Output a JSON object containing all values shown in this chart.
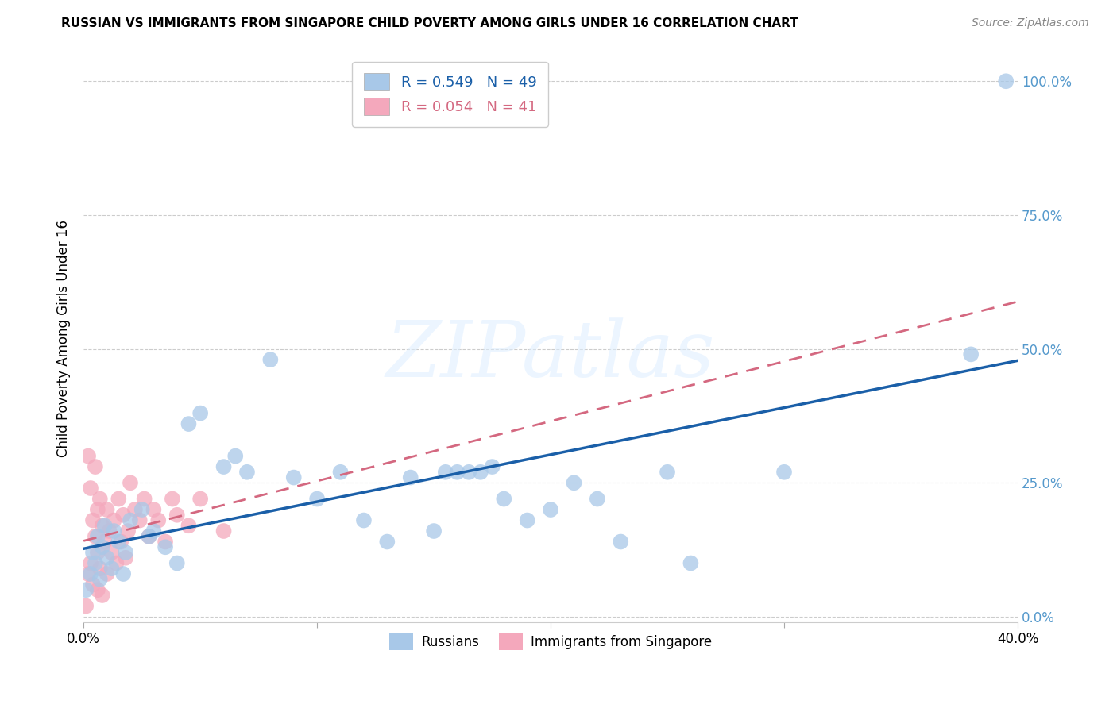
{
  "title": "RUSSIAN VS IMMIGRANTS FROM SINGAPORE CHILD POVERTY AMONG GIRLS UNDER 16 CORRELATION CHART",
  "source": "Source: ZipAtlas.com",
  "ylabel": "Child Poverty Among Girls Under 16",
  "xlim": [
    0.0,
    0.4
  ],
  "ylim": [
    -0.01,
    1.05
  ],
  "yticks": [
    0.0,
    0.25,
    0.5,
    0.75,
    1.0
  ],
  "ytick_labels": [
    "0.0%",
    "25.0%",
    "50.0%",
    "75.0%",
    "100.0%"
  ],
  "xticks": [
    0.0,
    0.1,
    0.2,
    0.3,
    0.4
  ],
  "xtick_labels": [
    "0.0%",
    "",
    "",
    "",
    "40.0%"
  ],
  "russians_R": 0.549,
  "russians_N": 49,
  "singapore_R": 0.054,
  "singapore_N": 41,
  "blue_color": "#a8c8e8",
  "pink_color": "#f4a8bc",
  "blue_line_color": "#1a5fa8",
  "pink_line_color": "#d46880",
  "legend_labels": [
    "Russians",
    "Immigrants from Singapore"
  ],
  "russians_x": [
    0.001,
    0.003,
    0.004,
    0.005,
    0.006,
    0.007,
    0.008,
    0.009,
    0.01,
    0.012,
    0.013,
    0.015,
    0.017,
    0.018,
    0.02,
    0.025,
    0.028,
    0.03,
    0.035,
    0.04,
    0.045,
    0.05,
    0.06,
    0.065,
    0.07,
    0.08,
    0.09,
    0.1,
    0.11,
    0.12,
    0.13,
    0.14,
    0.15,
    0.155,
    0.16,
    0.165,
    0.17,
    0.175,
    0.18,
    0.19,
    0.2,
    0.21,
    0.22,
    0.23,
    0.25,
    0.26,
    0.3,
    0.38,
    0.395
  ],
  "russians_y": [
    0.05,
    0.08,
    0.12,
    0.1,
    0.15,
    0.07,
    0.13,
    0.17,
    0.11,
    0.09,
    0.16,
    0.14,
    0.08,
    0.12,
    0.18,
    0.2,
    0.15,
    0.16,
    0.13,
    0.1,
    0.36,
    0.38,
    0.28,
    0.3,
    0.27,
    0.48,
    0.26,
    0.22,
    0.27,
    0.18,
    0.14,
    0.26,
    0.16,
    0.27,
    0.27,
    0.27,
    0.27,
    0.28,
    0.22,
    0.18,
    0.2,
    0.25,
    0.22,
    0.14,
    0.27,
    0.1,
    0.27,
    0.49,
    1.0
  ],
  "singapore_x": [
    0.001,
    0.002,
    0.002,
    0.003,
    0.003,
    0.004,
    0.004,
    0.005,
    0.005,
    0.006,
    0.006,
    0.006,
    0.007,
    0.007,
    0.008,
    0.008,
    0.009,
    0.01,
    0.01,
    0.011,
    0.012,
    0.013,
    0.014,
    0.015,
    0.016,
    0.017,
    0.018,
    0.019,
    0.02,
    0.022,
    0.024,
    0.026,
    0.028,
    0.03,
    0.032,
    0.035,
    0.038,
    0.04,
    0.045,
    0.05,
    0.06
  ],
  "singapore_y": [
    0.02,
    0.3,
    0.08,
    0.24,
    0.1,
    0.18,
    0.06,
    0.15,
    0.28,
    0.12,
    0.2,
    0.05,
    0.22,
    0.09,
    0.17,
    0.04,
    0.14,
    0.2,
    0.08,
    0.16,
    0.12,
    0.18,
    0.1,
    0.22,
    0.14,
    0.19,
    0.11,
    0.16,
    0.25,
    0.2,
    0.18,
    0.22,
    0.15,
    0.2,
    0.18,
    0.14,
    0.22,
    0.19,
    0.17,
    0.22,
    0.16
  ]
}
